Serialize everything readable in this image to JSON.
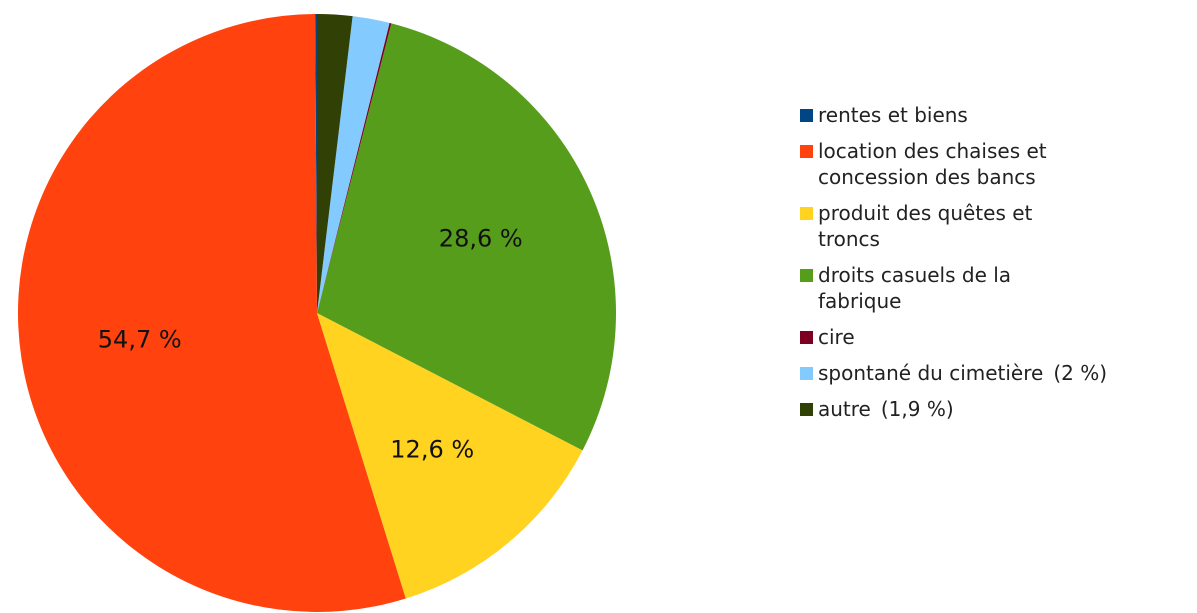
{
  "chart_data": {
    "type": "pie",
    "categories": [
      "rentes et biens",
      "location des chaises et concession des bancs",
      "produit des quêtes et troncs",
      "droits casuels de la fabrique",
      "cire",
      "spontané du cimetière",
      "autre"
    ],
    "values": [
      0.1,
      54.7,
      12.6,
      28.6,
      0.1,
      2,
      1.9
    ],
    "value_labels": [
      null,
      "54,7 %",
      "12,6 %",
      "28,6 %",
      null,
      "(2 %)",
      "(1,9 %)"
    ],
    "colors": [
      "#004586",
      "#ff420e",
      "#ffd320",
      "#579d1c",
      "#7e0021",
      "#83caff",
      "#314004"
    ]
  }
}
